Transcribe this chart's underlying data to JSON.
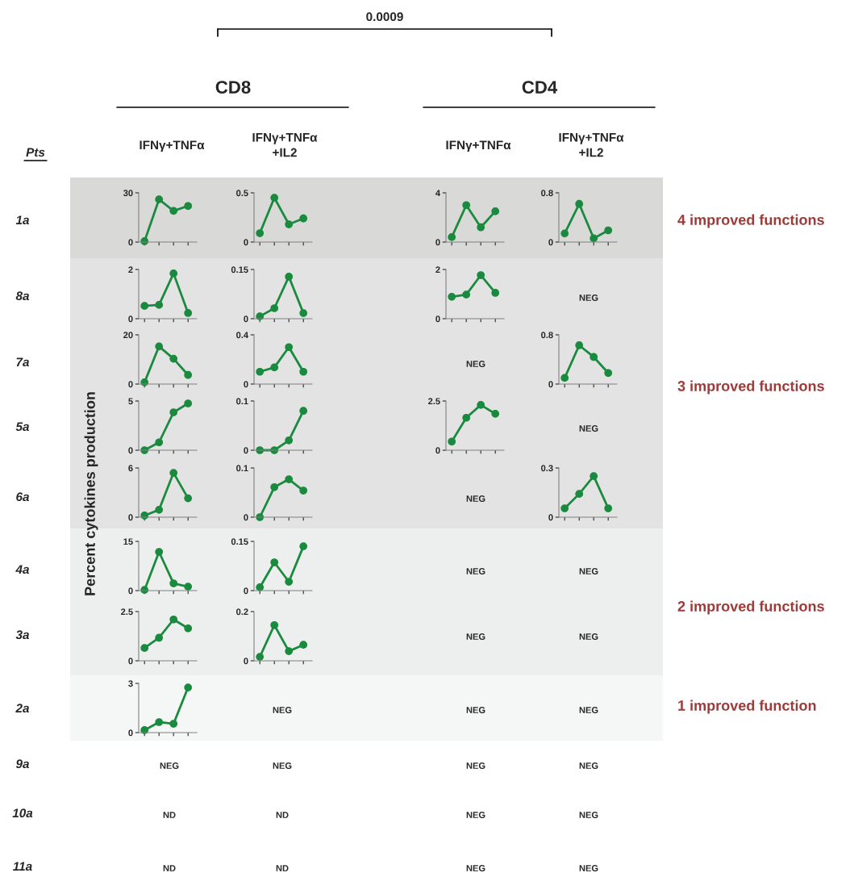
{
  "chart_data": [
    {
      "type": "other",
      "ylabel": "Percent cytokines production",
      "annotations": [
        "0.0009",
        "CD8",
        "CD4",
        "Pts",
        "IFNγ+TNFα",
        "IFNγ+TNFα\n+IL2",
        "IFNγ+TNFα",
        "IFNγ+TNFα\n+IL2",
        "1a",
        "8a",
        "7a",
        "5a",
        "6a",
        "4a",
        "3a",
        "2a",
        "9a",
        "10a",
        "11a",
        "4 improved functions",
        "3 improved functions",
        "2 improved functions",
        "1 improved function",
        "NEG",
        "NEG",
        "NEG",
        "NEG",
        "NEG",
        "NEG",
        "NEG",
        "NEG",
        "NEG",
        "NEG",
        "NEG",
        "NEG",
        "NEG",
        "NEG",
        "NEG",
        "ND",
        "ND",
        "NEG",
        "NEG",
        "ND",
        "ND",
        "NEG",
        "NEG"
      ]
    },
    {
      "type": "line",
      "categories": [
        null,
        null,
        null,
        null
      ],
      "values": [
        0.5,
        26,
        19,
        22
      ],
      "color": "#1a8a3f",
      "marker": "circle",
      "ylim": [
        0,
        30
      ],
      "yticks": [
        0,
        30
      ],
      "tick_labels": "y"
    },
    {
      "type": "line",
      "categories": [
        null,
        null,
        null,
        null
      ],
      "values": [
        0.09,
        0.45,
        0.18,
        0.24
      ],
      "color": "#1a8a3f",
      "marker": "circle",
      "ylim": [
        0,
        0.5
      ],
      "yticks": [
        0,
        0.5
      ],
      "tick_labels": "y"
    },
    {
      "type": "line",
      "categories": [
        null,
        null,
        null,
        null
      ],
      "values": [
        0.4,
        3.0,
        1.2,
        2.5
      ],
      "color": "#1a8a3f",
      "marker": "circle",
      "ylim": [
        0,
        4
      ],
      "yticks": [
        0,
        4
      ],
      "tick_labels": "y"
    },
    {
      "type": "line",
      "categories": [
        null,
        null,
        null,
        null
      ],
      "values": [
        0.14,
        0.62,
        0.06,
        0.19
      ],
      "color": "#1a8a3f",
      "marker": "circle",
      "ylim": [
        0,
        0.8
      ],
      "yticks": [
        0,
        0.8
      ],
      "tick_labels": "y"
    },
    {
      "type": "line",
      "categories": [
        null,
        null,
        null,
        null
      ],
      "values": [
        0.52,
        0.56,
        1.84,
        0.23
      ],
      "color": "#1a8a3f",
      "marker": "circle",
      "ylim": [
        0,
        2
      ],
      "yticks": [
        0,
        2
      ],
      "tick_labels": "y"
    },
    {
      "type": "line",
      "categories": [
        null,
        null,
        null,
        null
      ],
      "values": [
        0.007,
        0.032,
        0.128,
        0.017
      ],
      "color": "#1a8a3f",
      "marker": "circle",
      "ylim": [
        0,
        0.15
      ],
      "yticks": [
        0,
        0.15
      ],
      "tick_labels": "y"
    },
    {
      "type": "line",
      "categories": [
        null,
        null,
        null,
        null
      ],
      "values": [
        0.89,
        0.98,
        1.77,
        1.05
      ],
      "color": "#1a8a3f",
      "marker": "circle",
      "ylim": [
        0,
        2
      ],
      "yticks": [
        0,
        2
      ],
      "tick_labels": "y"
    },
    {
      "type": "line",
      "categories": [
        null,
        null,
        null,
        null
      ],
      "values": [
        0.7,
        15.3,
        10.3,
        3.7
      ],
      "color": "#1a8a3f",
      "marker": "circle",
      "ylim": [
        0,
        20
      ],
      "yticks": [
        0,
        20
      ],
      "tick_labels": "y"
    },
    {
      "type": "line",
      "categories": [
        null,
        null,
        null,
        null
      ],
      "values": [
        0.1,
        0.135,
        0.3,
        0.1
      ],
      "color": "#1a8a3f",
      "marker": "circle",
      "ylim": [
        0,
        0.4
      ],
      "yticks": [
        0,
        0.4
      ],
      "tick_labels": "y"
    },
    {
      "type": "line",
      "categories": [
        null,
        null,
        null,
        null
      ],
      "values": [
        0.1,
        0.63,
        0.44,
        0.18
      ],
      "color": "#1a8a3f",
      "marker": "circle",
      "ylim": [
        0,
        0.8
      ],
      "yticks": [
        0,
        0.8
      ],
      "tick_labels": "y"
    },
    {
      "type": "line",
      "categories": [
        null,
        null,
        null,
        null
      ],
      "values": [
        0,
        0.8,
        3.85,
        4.75
      ],
      "color": "#1a8a3f",
      "marker": "circle",
      "ylim": [
        0,
        5
      ],
      "yticks": [
        0,
        5
      ],
      "tick_labels": "y"
    },
    {
      "type": "line",
      "categories": [
        null,
        null,
        null,
        null
      ],
      "values": [
        0,
        0,
        0.02,
        0.08
      ],
      "color": "#1a8a3f",
      "marker": "circle",
      "ylim": [
        0,
        0.1
      ],
      "yticks": [
        0,
        0.1
      ],
      "tick_labels": "y"
    },
    {
      "type": "line",
      "categories": [
        null,
        null,
        null,
        null
      ],
      "values": [
        0.44,
        1.65,
        2.3,
        1.85
      ],
      "color": "#1a8a3f",
      "marker": "circle",
      "ylim": [
        0,
        2.5
      ],
      "yticks": [
        0,
        2.5
      ],
      "tick_labels": "y"
    },
    {
      "type": "line",
      "categories": [
        null,
        null,
        null,
        null
      ],
      "values": [
        0.2,
        0.9,
        5.4,
        2.3
      ],
      "color": "#1a8a3f",
      "marker": "circle",
      "ylim": [
        0,
        6
      ],
      "yticks": [
        0,
        6
      ],
      "tick_labels": "y"
    },
    {
      "type": "line",
      "categories": [
        null,
        null,
        null,
        null
      ],
      "values": [
        0,
        0.061,
        0.077,
        0.054
      ],
      "color": "#1a8a3f",
      "marker": "circle",
      "ylim": [
        0,
        0.1
      ],
      "yticks": [
        0,
        0.1
      ],
      "tick_labels": "y"
    },
    {
      "type": "line",
      "categories": [
        null,
        null,
        null,
        null
      ],
      "values": [
        0.054,
        0.142,
        0.25,
        0.054
      ],
      "color": "#1a8a3f",
      "marker": "circle",
      "ylim": [
        0,
        0.3
      ],
      "yticks": [
        0,
        0.3
      ],
      "tick_labels": "y"
    },
    {
      "type": "line",
      "categories": [
        null,
        null,
        null,
        null
      ],
      "values": [
        0.2,
        11.8,
        2.2,
        1.2
      ],
      "color": "#1a8a3f",
      "marker": "circle",
      "ylim": [
        0,
        15
      ],
      "yticks": [
        0,
        15
      ],
      "tick_labels": "y"
    },
    {
      "type": "line",
      "categories": [
        null,
        null,
        null,
        null
      ],
      "values": [
        0.01,
        0.086,
        0.027,
        0.135
      ],
      "color": "#1a8a3f",
      "marker": "circle",
      "ylim": [
        0,
        0.15
      ],
      "yticks": [
        0,
        0.15
      ],
      "tick_labels": "y"
    },
    {
      "type": "line",
      "categories": [
        null,
        null,
        null,
        null
      ],
      "values": [
        0.65,
        1.17,
        2.1,
        1.65
      ],
      "color": "#1a8a3f",
      "marker": "circle",
      "ylim": [
        0,
        2.5
      ],
      "yticks": [
        0,
        2.5
      ],
      "tick_labels": "y"
    },
    {
      "type": "line",
      "categories": [
        null,
        null,
        null,
        null
      ],
      "values": [
        0.016,
        0.145,
        0.039,
        0.065
      ],
      "color": "#1a8a3f",
      "marker": "circle",
      "ylim": [
        0,
        0.2
      ],
      "yticks": [
        0,
        0.2
      ],
      "tick_labels": "y"
    },
    {
      "type": "line",
      "categories": [
        null,
        null,
        null,
        null
      ],
      "values": [
        0.15,
        0.64,
        0.54,
        2.75
      ],
      "color": "#1a8a3f",
      "marker": "circle",
      "ylim": [
        0,
        3
      ],
      "yticks": [
        0,
        3
      ],
      "tick_labels": "y"
    }
  ]
}
